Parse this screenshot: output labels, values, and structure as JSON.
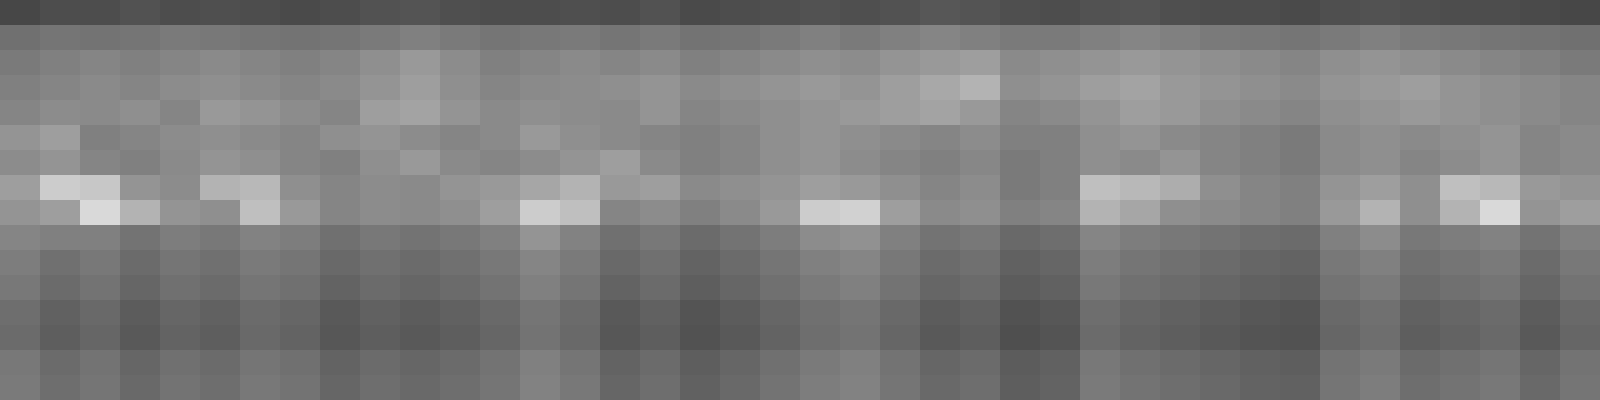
{
  "chart_data": {
    "type": "heatmap",
    "tick_labels": false,
    "zlim": [
      0,
      100
    ],
    "cells": [
      [
        28,
        30,
        30,
        32,
        30,
        31,
        30,
        29,
        30,
        32,
        33,
        31,
        30,
        30,
        31,
        30,
        32,
        29,
        30,
        31,
        32,
        31,
        32,
        34,
        33,
        31,
        30,
        32,
        33,
        31,
        30,
        30,
        29,
        31,
        32,
        31,
        30,
        30,
        29,
        28
      ],
      [
        44,
        46,
        45,
        46,
        48,
        47,
        46,
        45,
        46,
        48,
        50,
        48,
        46,
        47,
        48,
        46,
        48,
        45,
        46,
        48,
        50,
        48,
        50,
        52,
        50,
        48,
        48,
        50,
        52,
        50,
        48,
        47,
        46,
        48,
        50,
        48,
        47,
        46,
        45,
        44
      ],
      [
        48,
        50,
        52,
        50,
        52,
        54,
        52,
        50,
        52,
        56,
        60,
        55,
        50,
        52,
        54,
        52,
        54,
        50,
        52,
        54,
        56,
        55,
        58,
        60,
        62,
        54,
        56,
        58,
        60,
        58,
        56,
        54,
        52,
        56,
        58,
        56,
        54,
        52,
        50,
        48
      ],
      [
        50,
        52,
        54,
        52,
        55,
        56,
        54,
        52,
        54,
        58,
        62,
        56,
        52,
        54,
        55,
        56,
        58,
        54,
        56,
        58,
        60,
        58,
        62,
        66,
        70,
        56,
        58,
        62,
        64,
        60,
        58,
        56,
        54,
        58,
        60,
        62,
        58,
        56,
        54,
        52
      ],
      [
        52,
        55,
        54,
        56,
        52,
        60,
        58,
        55,
        52,
        62,
        64,
        58,
        54,
        56,
        55,
        54,
        58,
        52,
        54,
        56,
        58,
        60,
        62,
        64,
        60,
        52,
        54,
        58,
        62,
        60,
        56,
        54,
        52,
        56,
        58,
        60,
        58,
        56,
        54,
        52
      ],
      [
        58,
        62,
        50,
        52,
        55,
        56,
        54,
        52,
        56,
        58,
        55,
        52,
        54,
        60,
        56,
        54,
        52,
        50,
        52,
        56,
        58,
        56,
        54,
        52,
        55,
        50,
        50,
        56,
        58,
        54,
        52,
        50,
        48,
        54,
        56,
        54,
        56,
        58,
        52,
        54
      ],
      [
        55,
        58,
        52,
        50,
        54,
        58,
        56,
        52,
        50,
        56,
        60,
        54,
        52,
        55,
        58,
        62,
        54,
        50,
        52,
        56,
        58,
        55,
        52,
        50,
        53,
        48,
        50,
        56,
        54,
        58,
        52,
        50,
        48,
        54,
        56,
        52,
        55,
        58,
        52,
        54
      ],
      [
        62,
        80,
        78,
        58,
        55,
        70,
        72,
        56,
        52,
        55,
        54,
        58,
        60,
        65,
        70,
        60,
        62,
        54,
        56,
        58,
        62,
        60,
        56,
        52,
        55,
        48,
        50,
        75,
        72,
        68,
        56,
        52,
        50,
        58,
        62,
        56,
        75,
        72,
        60,
        58
      ],
      [
        58,
        62,
        85,
        70,
        58,
        56,
        75,
        60,
        52,
        55,
        54,
        56,
        62,
        80,
        75,
        52,
        55,
        50,
        54,
        60,
        80,
        82,
        62,
        54,
        56,
        50,
        52,
        70,
        65,
        56,
        54,
        52,
        50,
        60,
        70,
        56,
        70,
        85,
        58,
        62
      ],
      [
        52,
        50,
        50,
        45,
        49,
        47,
        51,
        49,
        44,
        47,
        45,
        47,
        50,
        58,
        51,
        44,
        47,
        42,
        45,
        49,
        55,
        57,
        50,
        45,
        47,
        41,
        43,
        52,
        49,
        47,
        45,
        43,
        42,
        50,
        55,
        47,
        49,
        51,
        45,
        50
      ],
      [
        49,
        44,
        47,
        42,
        46,
        44,
        48,
        46,
        41,
        44,
        42,
        44,
        47,
        52,
        48,
        41,
        44,
        39,
        42,
        46,
        50,
        52,
        47,
        42,
        44,
        38,
        40,
        49,
        46,
        44,
        42,
        40,
        39,
        47,
        50,
        44,
        46,
        48,
        42,
        47
      ],
      [
        47,
        42,
        45,
        40,
        44,
        42,
        46,
        44,
        39,
        42,
        40,
        42,
        45,
        50,
        46,
        39,
        42,
        37,
        40,
        44,
        48,
        50,
        45,
        40,
        42,
        36,
        38,
        47,
        44,
        42,
        40,
        38,
        37,
        45,
        48,
        42,
        44,
        46,
        40,
        45
      ],
      [
        43,
        38,
        41,
        36,
        40,
        38,
        42,
        40,
        35,
        38,
        36,
        38,
        41,
        46,
        42,
        35,
        38,
        33,
        36,
        40,
        44,
        46,
        41,
        36,
        38,
        32,
        34,
        43,
        40,
        38,
        36,
        34,
        33,
        41,
        44,
        38,
        40,
        42,
        36,
        41
      ],
      [
        42,
        37,
        40,
        35,
        39,
        37,
        41,
        39,
        34,
        37,
        35,
        37,
        40,
        45,
        41,
        34,
        37,
        32,
        35,
        39,
        43,
        45,
        40,
        35,
        37,
        31,
        33,
        42,
        39,
        37,
        35,
        33,
        32,
        40,
        43,
        37,
        39,
        41,
        35,
        40
      ],
      [
        47,
        42,
        45,
        40,
        44,
        42,
        46,
        44,
        39,
        42,
        40,
        42,
        45,
        50,
        46,
        39,
        42,
        37,
        40,
        44,
        48,
        50,
        45,
        40,
        42,
        36,
        38,
        47,
        44,
        42,
        40,
        38,
        37,
        45,
        48,
        42,
        44,
        46,
        40,
        45
      ],
      [
        48,
        43,
        46,
        41,
        45,
        43,
        47,
        45,
        40,
        43,
        41,
        43,
        46,
        51,
        47,
        40,
        43,
        38,
        41,
        45,
        49,
        51,
        46,
        41,
        43,
        37,
        39,
        48,
        45,
        43,
        41,
        39,
        38,
        46,
        49,
        43,
        45,
        47,
        41,
        46
      ]
    ]
  }
}
